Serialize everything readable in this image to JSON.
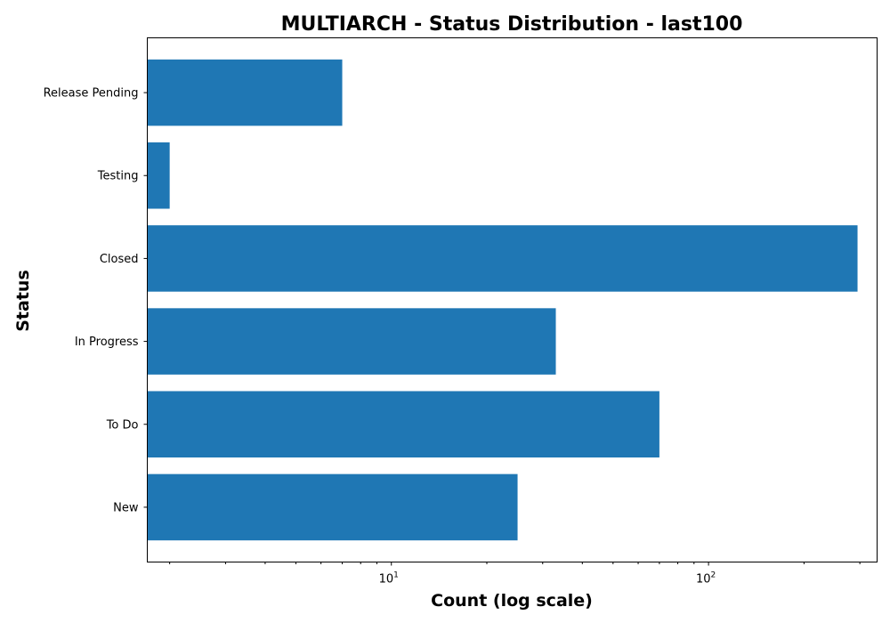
{
  "chart_data": {
    "type": "bar",
    "orientation": "horizontal",
    "title": "MULTIARCH - Status Distribution - last100",
    "xlabel": "Count (log scale)",
    "ylabel": "Status",
    "xscale": "log",
    "xlim": [
      1.7,
      340
    ],
    "categories": [
      "New",
      "To Do",
      "In Progress",
      "Closed",
      "Testing",
      "Release Pending"
    ],
    "values": [
      25,
      70,
      33,
      295,
      2,
      7
    ],
    "bar_color": "#1f77b4",
    "x_major_ticks": [
      {
        "base": "10",
        "exp": "1",
        "value": 10
      },
      {
        "base": "10",
        "exp": "2",
        "value": 100
      }
    ],
    "grid": false,
    "legend": "none"
  }
}
